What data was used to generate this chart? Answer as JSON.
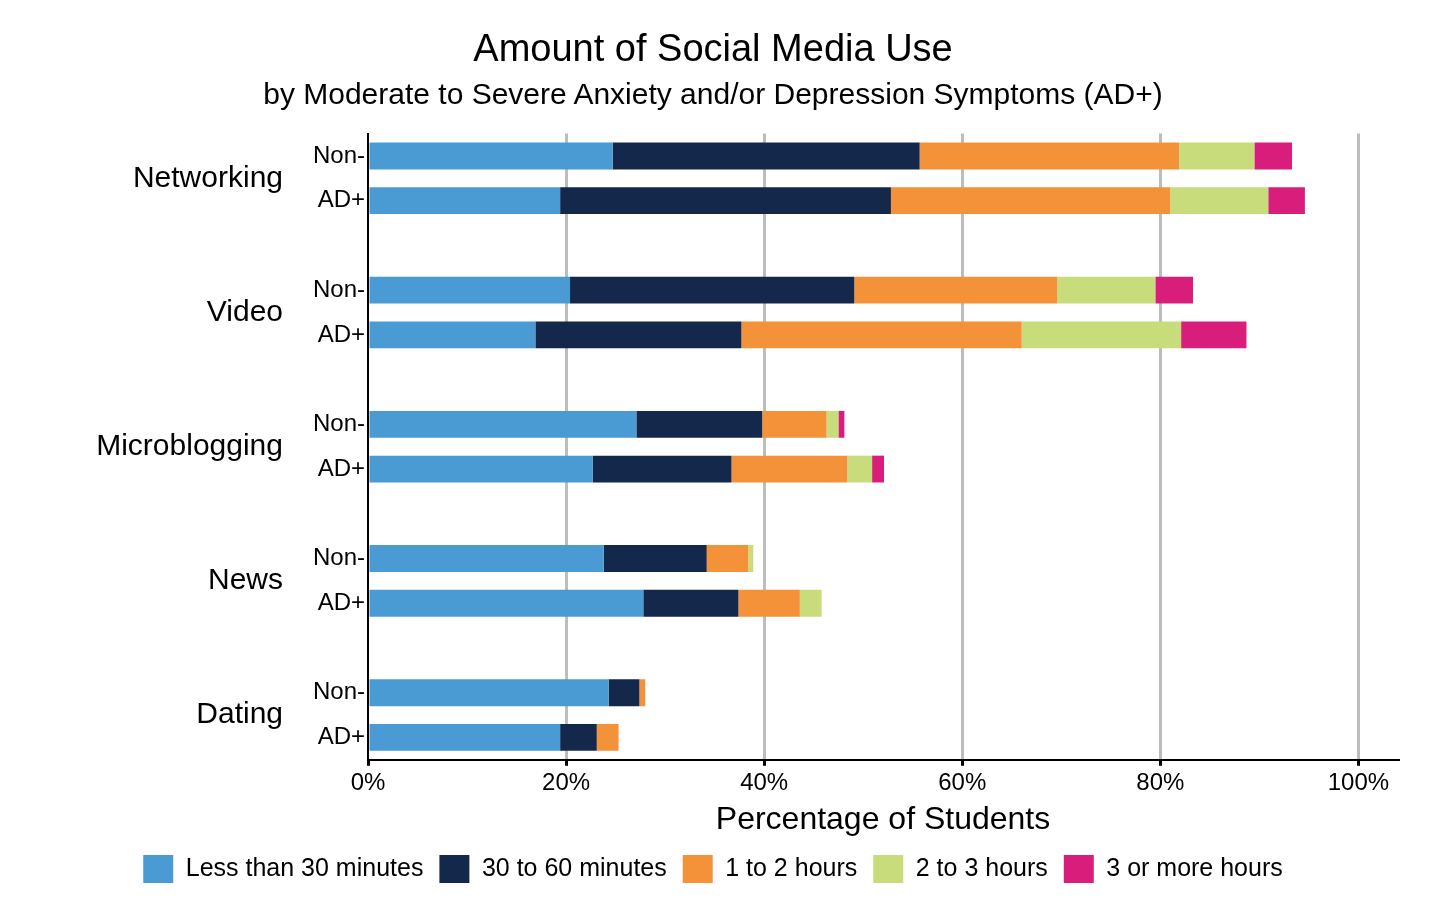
{
  "chart_data": {
    "type": "bar",
    "orientation": "horizontal",
    "stacked": true,
    "title": "Amount of Social Media Use",
    "subtitle": "by Moderate to Severe Anxiety and/or Depression Symptoms (AD+)",
    "xlabel": "Percentage of Students",
    "categories": [
      "Non-",
      "AD+",
      null,
      "Non-",
      "AD+",
      null,
      "Non-",
      "AD+",
      null,
      "Non-",
      "AD+",
      null,
      "Non-",
      "AD+"
    ],
    "annotations": [
      "Networking",
      "Video",
      "Microblogging",
      "News",
      "Dating"
    ],
    "series": [
      {
        "name": "Less than 30 minutes",
        "color": "#4a9bd4",
        "values": [
          24.7,
          19.4,
          null,
          20.4,
          16.9,
          null,
          27.1,
          22.7,
          null,
          23.8,
          27.8,
          null,
          24.3,
          19.4
        ]
      },
      {
        "name": "30 to 60 minutes",
        "color": "#14284b",
        "values": [
          31.0,
          33.4,
          null,
          28.7,
          20.8,
          null,
          12.7,
          14.0,
          null,
          10.4,
          9.6,
          null,
          3.1,
          3.7
        ]
      },
      {
        "name": "1 to 2 hours",
        "color": "#f39239",
        "values": [
          26.2,
          28.2,
          null,
          20.5,
          28.3,
          null,
          6.5,
          11.7,
          null,
          4.2,
          6.2,
          null,
          0.6,
          2.2
        ]
      },
      {
        "name": "2 to 3 hours",
        "color": "#c8dc7c",
        "values": [
          7.6,
          9.9,
          null,
          9.9,
          16.1,
          null,
          1.2,
          2.5,
          null,
          0.5,
          2.2,
          null,
          0,
          0
        ]
      },
      {
        "name": "3 or more hours",
        "color": "#d81e7a",
        "values": [
          3.8,
          3.7,
          null,
          3.8,
          6.6,
          null,
          0.6,
          1.2,
          null,
          0,
          0,
          null,
          0,
          0
        ]
      }
    ],
    "xlim": [
      0,
      104
    ],
    "xticks": [
      {
        "value": 0,
        "label": "0%"
      },
      {
        "value": 20,
        "label": "20%"
      },
      {
        "value": 40,
        "label": "40%"
      },
      {
        "value": 60,
        "label": "60%"
      },
      {
        "value": 80,
        "label": "80%"
      },
      {
        "value": 100,
        "label": "100%"
      }
    ],
    "grid": "x",
    "legend": "bottom"
  }
}
